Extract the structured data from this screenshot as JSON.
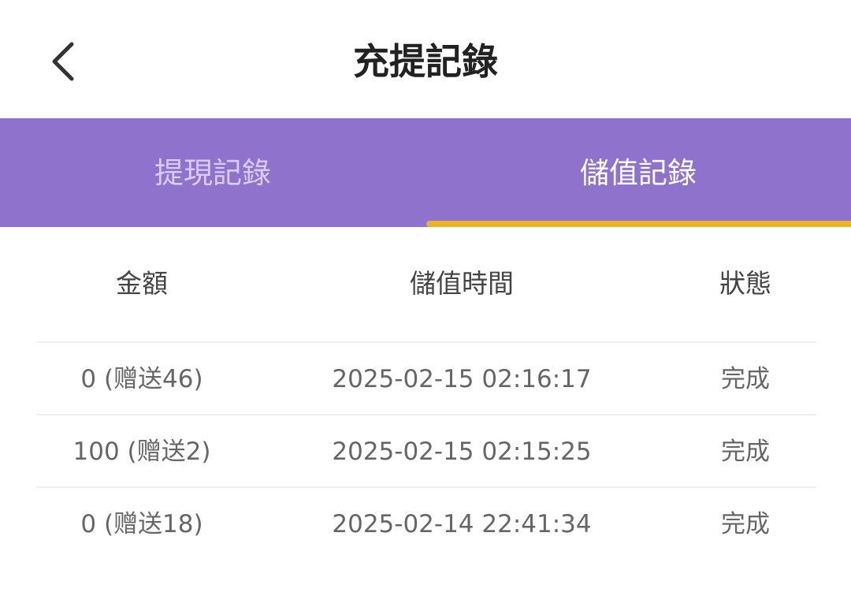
{
  "header": {
    "title": "充提記錄",
    "back_icon": "chevron-left-icon"
  },
  "tabs": [
    {
      "label": "提現記錄",
      "active": false
    },
    {
      "label": "儲值記錄",
      "active": true
    }
  ],
  "colors": {
    "tab_bar": "#8e72cc",
    "active_indicator": "#e8b52a"
  },
  "table": {
    "columns": [
      "金額",
      "儲值時間",
      "狀態"
    ],
    "rows": [
      {
        "amount": "0 (赠送46)",
        "time": "2025-02-15 02:16:17",
        "status": "完成"
      },
      {
        "amount": "100 (赠送2)",
        "time": "2025-02-15 02:15:25",
        "status": "完成"
      },
      {
        "amount": "0 (赠送18)",
        "time": "2025-02-14 22:41:34",
        "status": "完成"
      }
    ]
  }
}
